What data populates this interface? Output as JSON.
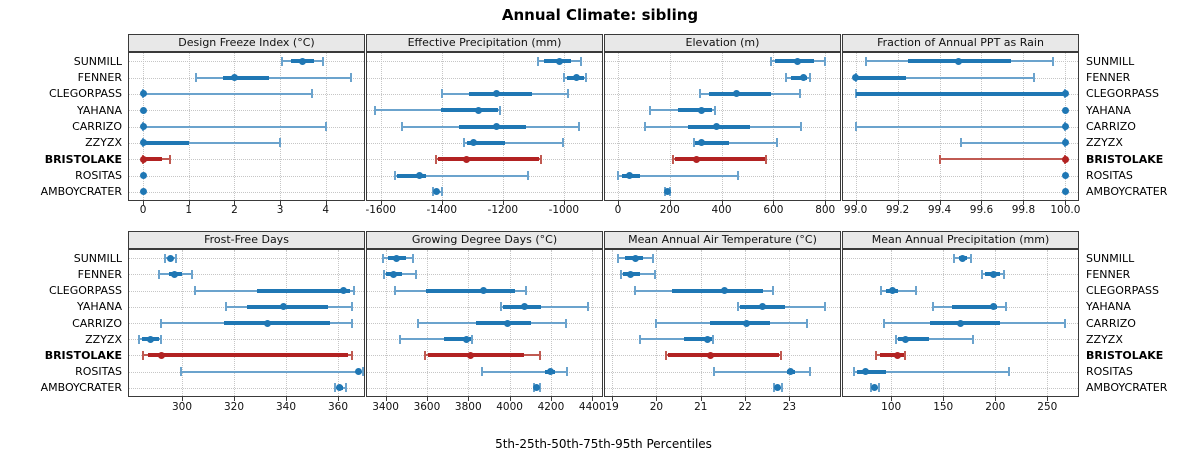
{
  "title": "Annual Climate: sibling",
  "xlabel": "5th-25th-50th-75th-95th Percentiles",
  "colors": {
    "series_blue": "#1f77b4",
    "series_blue_light": "#6ba3cd",
    "highlight_red": "#b22222",
    "highlight_red_light": "#c05a52",
    "strip_bg": "#e8e8e8",
    "grid": "#c6c6c6",
    "border": "#3a3a3a"
  },
  "chart_data": {
    "type": "dotplot",
    "note": "Trellis of horizontal percentile ranges per site; thick bar = 25th-75th, thin line with caps = 5th-95th, dot = median",
    "percentiles": [
      "5th",
      "25th",
      "50th",
      "75th",
      "95th"
    ],
    "sites": [
      "SUNMILL",
      "FENNER",
      "CLEGORPASS",
      "YAHANA",
      "CARRIZO",
      "ZZYZX",
      "BRISTOLAKE",
      "ROSITAS",
      "AMBOYCRATER"
    ],
    "highlight_site": "BRISTOLAKE",
    "legend_position": "none",
    "grid": true,
    "panels": [
      {
        "title": "Design Freeze Index (°C)",
        "row": 0,
        "col": 0,
        "xlim": [
          -0.31,
          4.84
        ],
        "ticks": [
          0,
          1,
          2,
          3,
          4
        ],
        "tick_labels": [
          "0",
          "1",
          "2",
          "3",
          "4"
        ],
        "values": {
          "SUNMILL": [
            3.05,
            3.25,
            3.5,
            3.75,
            3.95
          ],
          "FENNER": [
            1.15,
            1.75,
            2.0,
            2.75,
            4.55
          ],
          "CLEGORPASS": [
            0,
            0,
            0,
            0,
            3.7
          ],
          "YAHANA": [
            0,
            0,
            0,
            0,
            0.04
          ],
          "CARRIZO": [
            0,
            0,
            0,
            0,
            4.0
          ],
          "ZZYZX": [
            0,
            0,
            0,
            1.0,
            3.0
          ],
          "BRISTOLAKE": [
            0,
            0,
            0,
            0.42,
            0.58
          ],
          "ROSITAS": [
            0,
            0,
            0,
            0,
            0.04
          ],
          "AMBOYCRATER": [
            0,
            0,
            0,
            0,
            0.04
          ]
        }
      },
      {
        "title": "Effective Precipitation (mm)",
        "row": 0,
        "col": 1,
        "xlim": [
          -1645,
          -875
        ],
        "ticks": [
          -1600,
          -1400,
          -1200,
          -1000
        ],
        "tick_labels": [
          "-1600",
          "-1400",
          "-1200",
          "-1000"
        ],
        "values": {
          "SUNMILL": [
            -1085,
            -1065,
            -1013,
            -978,
            -943
          ],
          "FENNER": [
            -1000,
            -991,
            -959,
            -933,
            -928
          ],
          "CLEGORPASS": [
            -1400,
            -1312,
            -1221,
            -1103,
            -987
          ],
          "YAHANA": [
            -1618,
            -1403,
            -1280,
            -1215,
            -1210
          ],
          "CARRIZO": [
            -1530,
            -1344,
            -1221,
            -1124,
            -951
          ],
          "ZZYZX": [
            -1328,
            -1317,
            -1296,
            -1193,
            -1003
          ],
          "BRISTOLAKE": [
            -1419,
            -1413,
            -1319,
            -1081,
            -1076
          ],
          "ROSITAS": [
            -1554,
            -1548,
            -1473,
            -1452,
            -1118
          ],
          "AMBOYCRATER": [
            -1430,
            -1422,
            -1416,
            -1408,
            -1398
          ]
        }
      },
      {
        "title": "Elevation (m)",
        "row": 0,
        "col": 2,
        "xlim": [
          -50,
          857
        ],
        "ticks": [
          0,
          200,
          400,
          600,
          800
        ],
        "tick_labels": [
          "0",
          "200",
          "400",
          "600",
          "800"
        ],
        "values": {
          "SUNMILL": [
            590,
            605,
            693,
            755,
            800
          ],
          "FENNER": [
            650,
            668,
            715,
            729,
            742
          ],
          "CLEGORPASS": [
            315,
            350,
            456,
            592,
            704
          ],
          "YAHANA": [
            125,
            230,
            322,
            363,
            373
          ],
          "CARRIZO": [
            103,
            272,
            382,
            509,
            706
          ],
          "ZZYZX": [
            293,
            297,
            321,
            427,
            614
          ],
          "BRISTOLAKE": [
            214,
            220,
            302,
            566,
            573
          ],
          "ROSITAS": [
            0,
            14,
            43,
            84,
            465
          ],
          "AMBOYCRATER": [
            183,
            187,
            192,
            196,
            201
          ]
        }
      },
      {
        "title": "Fraction of Annual PPT as Rain",
        "row": 0,
        "col": 3,
        "xlim": [
          98.94,
          100.06
        ],
        "ticks": [
          99.0,
          99.2,
          99.4,
          99.6,
          99.8,
          100.0
        ],
        "tick_labels": [
          "99.0",
          "99.2",
          "99.4",
          "99.6",
          "99.8",
          "100.0"
        ],
        "values": {
          "SUNMILL": [
            99.05,
            99.25,
            99.49,
            99.74,
            99.94
          ],
          "FENNER": [
            99.0,
            99.0,
            99.0,
            99.24,
            99.85
          ],
          "CLEGORPASS": [
            99.0,
            99.0,
            100.0,
            100.0,
            100.0
          ],
          "YAHANA": [
            100.0,
            100.0,
            100.0,
            100.0,
            100.0
          ],
          "CARRIZO": [
            99.0,
            99.99,
            100.0,
            100.0,
            100.0
          ],
          "ZZYZX": [
            99.5,
            100.0,
            100.0,
            100.0,
            100.0
          ],
          "BRISTOLAKE": [
            99.4,
            100.0,
            100.0,
            100.0,
            100.0
          ],
          "ROSITAS": [
            100.0,
            100.0,
            100.0,
            100.0,
            100.0
          ],
          "AMBOYCRATER": [
            100.0,
            100.0,
            100.0,
            100.0,
            100.0
          ]
        }
      },
      {
        "title": "Frost-Free Days",
        "row": 1,
        "col": 0,
        "xlim": [
          279.6,
          370
        ],
        "ticks": [
          300,
          320,
          340,
          360
        ],
        "tick_labels": [
          "300",
          "320",
          "340",
          "360"
        ],
        "values": {
          "SUNMILL": [
            293.5,
            294.5,
            295.5,
            296.5,
            297.5
          ],
          "FENNER": [
            291,
            295,
            297,
            300,
            304
          ],
          "CLEGORPASS": [
            305,
            329,
            362,
            364.5,
            366
          ],
          "YAHANA": [
            317,
            325,
            339,
            356,
            365.5
          ],
          "CARRIZO": [
            292,
            316,
            333,
            357,
            365.5
          ],
          "ZZYZX": [
            283.5,
            284.5,
            288,
            291,
            292
          ],
          "BRISTOLAKE": [
            285,
            287,
            292,
            364,
            365.5
          ],
          "ROSITAS": [
            299.5,
            367,
            368,
            369,
            369.5
          ],
          "AMBOYCRATER": [
            359,
            360,
            360.5,
            362,
            363
          ]
        }
      },
      {
        "title": "Growing Degree Days (°C)",
        "row": 1,
        "col": 1,
        "xlim": [
          3310,
          4447
        ],
        "ticks": [
          3400,
          3600,
          3800,
          4000,
          4200,
          4400
        ],
        "tick_labels": [
          "3400",
          "3600",
          "3800",
          "4000",
          "4200",
          "4400"
        ],
        "values": {
          "SUNMILL": [
            3385,
            3410,
            3455,
            3500,
            3532
          ],
          "FENNER": [
            3390,
            3402,
            3437,
            3477,
            3545
          ],
          "CLEGORPASS": [
            3444,
            3596,
            3875,
            4027,
            4081
          ],
          "YAHANA": [
            3959,
            3967,
            4071,
            4150,
            4377
          ],
          "CARRIZO": [
            3559,
            3835,
            3990,
            4105,
            4272
          ],
          "ZZYZX": [
            3469,
            3684,
            3792,
            3811,
            3816
          ],
          "BRISTOLAKE": [
            3593,
            3604,
            3810,
            4071,
            4146
          ],
          "ROSITAS": [
            3867,
            4170,
            4197,
            4221,
            4280
          ],
          "AMBOYCRATER": [
            4120,
            4127,
            4132,
            4138,
            4145
          ]
        }
      },
      {
        "title": "Mean Annual Air Temperature (°C)",
        "row": 1,
        "col": 2,
        "xlim": [
          18.84,
          24.14
        ],
        "ticks": [
          19,
          20,
          21,
          22,
          23
        ],
        "tick_labels": [
          "19",
          "20",
          "21",
          "22",
          "23"
        ],
        "values": {
          "SUNMILL": [
            19.13,
            19.28,
            19.53,
            19.69,
            19.92
          ],
          "FENNER": [
            19.19,
            19.25,
            19.42,
            19.62,
            19.96
          ],
          "CLEGORPASS": [
            19.51,
            20.36,
            21.54,
            22.41,
            22.64
          ],
          "YAHANA": [
            21.85,
            21.89,
            22.39,
            22.89,
            23.8
          ],
          "CARRIZO": [
            19.99,
            21.2,
            22.04,
            22.57,
            23.39
          ],
          "ZZYZX": [
            19.62,
            20.62,
            21.15,
            21.26,
            21.28
          ],
          "BRISTOLAKE": [
            20.22,
            20.25,
            21.22,
            22.76,
            22.8
          ],
          "ROSITAS": [
            21.3,
            22.94,
            23.02,
            23.13,
            23.47
          ],
          "AMBOYCRATER": [
            22.65,
            22.7,
            22.74,
            22.79,
            22.83
          ]
        }
      },
      {
        "title": "Mean Annual Precipitation (mm)",
        "row": 1,
        "col": 3,
        "xlim": [
          53.7,
          279.5
        ],
        "ticks": [
          100,
          150,
          200,
          250
        ],
        "tick_labels": [
          "100",
          "150",
          "200",
          "250"
        ],
        "values": {
          "SUNMILL": [
            160,
            165,
            169,
            173,
            177
          ],
          "FENNER": [
            187,
            190,
            198,
            205,
            208
          ],
          "CLEGORPASS": [
            90,
            95,
            101,
            107,
            124
          ],
          "YAHANA": [
            140,
            158,
            198,
            202,
            210
          ],
          "CARRIZO": [
            93,
            137,
            167,
            205,
            267
          ],
          "ZZYZX": [
            105,
            107,
            114,
            136,
            179
          ],
          "BRISTOLAKE": [
            85,
            89,
            106,
            112,
            113
          ],
          "ROSITAS": [
            64,
            67,
            75,
            95,
            213
          ],
          "AMBOYCRATER": [
            81,
            83,
            84,
            86,
            88
          ]
        }
      }
    ]
  }
}
